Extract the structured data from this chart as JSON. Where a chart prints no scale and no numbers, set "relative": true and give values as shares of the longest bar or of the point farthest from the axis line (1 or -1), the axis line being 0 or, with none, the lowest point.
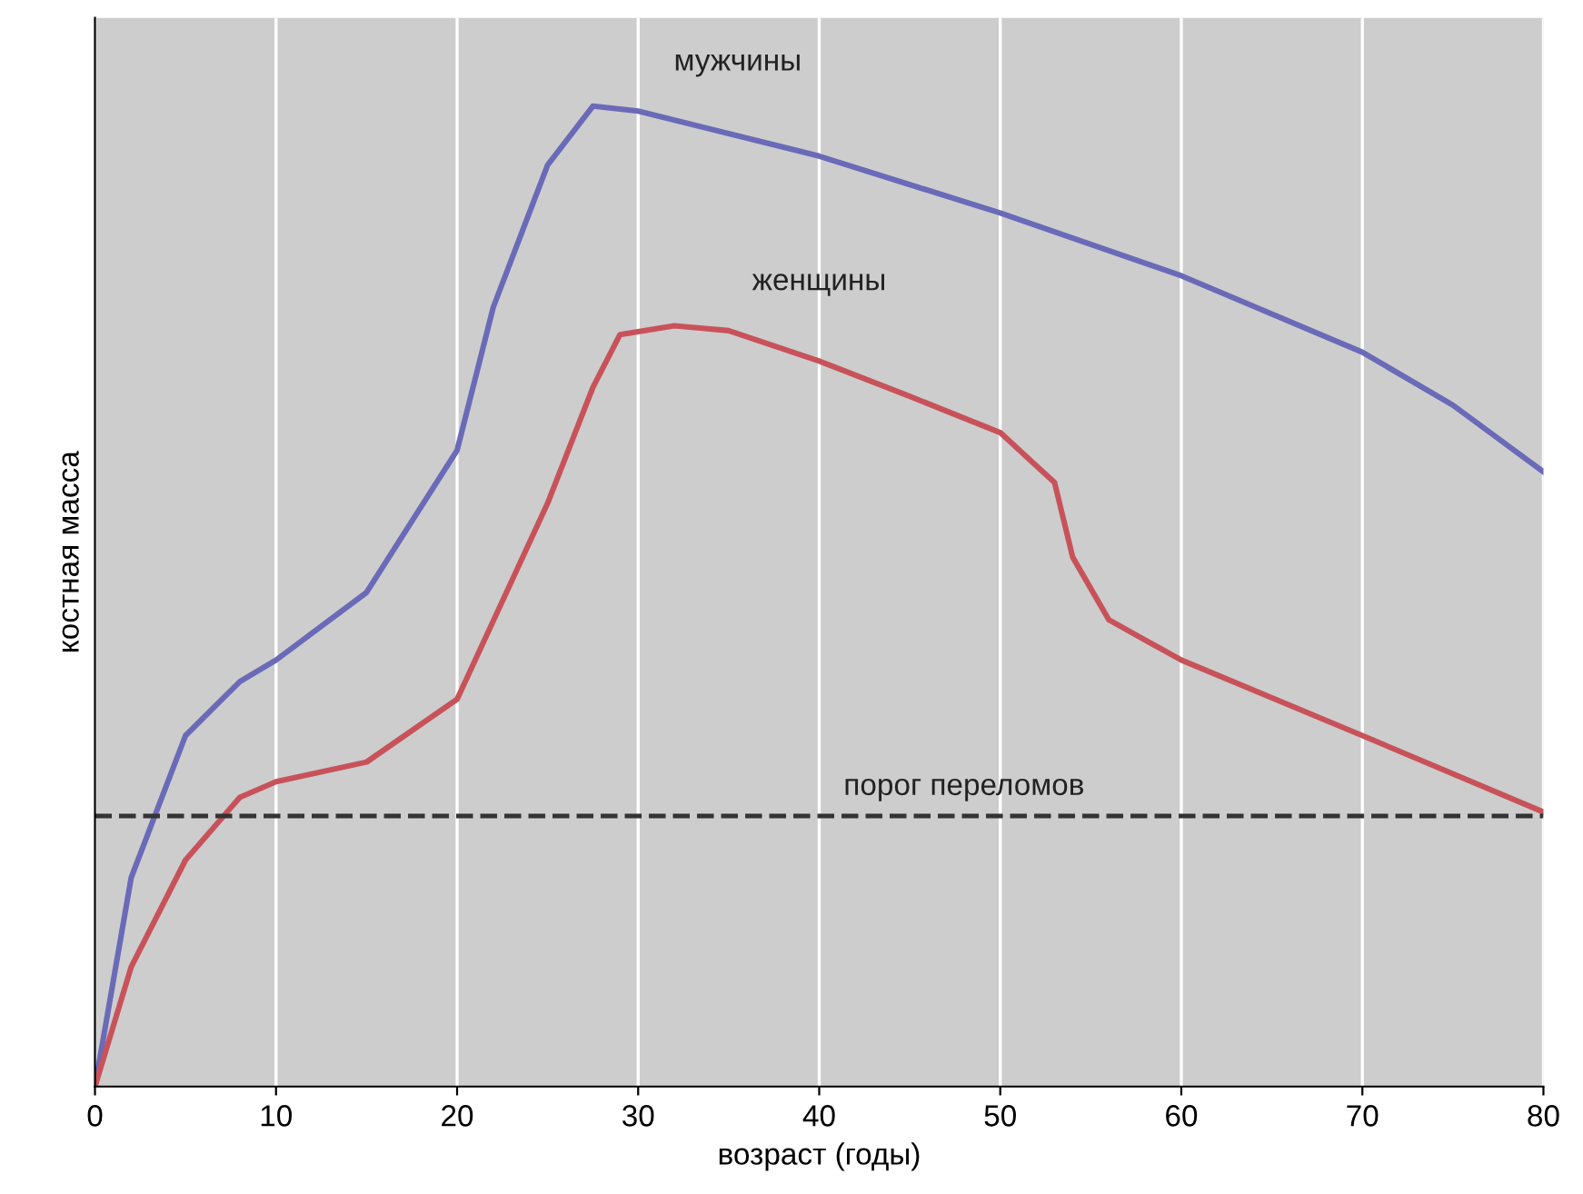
{
  "chart_data": {
    "type": "line",
    "relative": true,
    "xlabel": "возраст (годы)",
    "ylabel": "костная масса",
    "xlim": [
      0,
      80
    ],
    "xticks": [
      0,
      10,
      20,
      30,
      40,
      50,
      60,
      70,
      80
    ],
    "grid": "x",
    "legend": false,
    "marker": "none",
    "line_style": "solid",
    "series": [
      {
        "name": "мужчины",
        "color": "#6a6ab8",
        "x": [
          0,
          2,
          5,
          8,
          10,
          15,
          20,
          22,
          25,
          27.5,
          30,
          40,
          50,
          60,
          70,
          75,
          80
        ],
        "values": [
          0,
          0.213,
          0.358,
          0.413,
          0.435,
          0.504,
          0.649,
          0.795,
          0.94,
          1,
          0.995,
          0.949,
          0.891,
          0.827,
          0.749,
          0.695,
          0.627
        ]
      },
      {
        "name": "женщины",
        "color": "#c8525a",
        "x": [
          0,
          2,
          5,
          8,
          10,
          15,
          20,
          25,
          27.5,
          29,
          32,
          35,
          40,
          45,
          50,
          53,
          53.5,
          54,
          56,
          60,
          70,
          80
        ],
        "values": [
          0,
          0.122,
          0.231,
          0.295,
          0.311,
          0.331,
          0.395,
          0.595,
          0.713,
          0.767,
          0.776,
          0.771,
          0.74,
          0.704,
          0.667,
          0.616,
          0.578,
          0.54,
          0.476,
          0.435,
          0.358,
          0.28
        ]
      }
    ],
    "ref_lines": [
      {
        "axis": "y",
        "value": 0.276,
        "label": "порог переломов",
        "color": "#333333",
        "line_style": "dashed"
      }
    ]
  }
}
